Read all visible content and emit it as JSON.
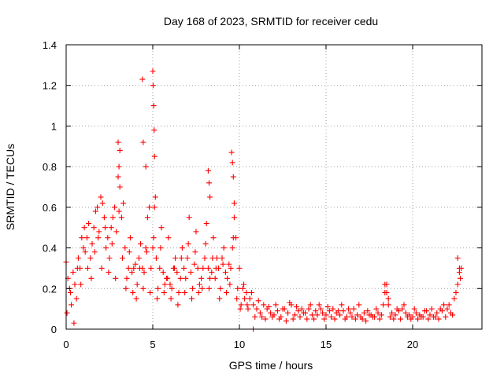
{
  "chart_data": {
    "type": "scatter",
    "title": "Day 168 of 2023, SRMTID for receiver cedu",
    "xlabel": "GPS time / hours",
    "ylabel": "SRMTID / TECUs",
    "xlim": [
      0,
      24
    ],
    "ylim": [
      0,
      1.4
    ],
    "xticks": [
      0,
      5,
      10,
      15,
      20
    ],
    "xtick_labels": [
      "0",
      "5",
      "10",
      "15",
      "20"
    ],
    "yticks": [
      0,
      0.2,
      0.4,
      0.6,
      0.8,
      1.0,
      1.2,
      1.4
    ],
    "ytick_labels": [
      "0",
      "0.2",
      "0.4",
      "0.6",
      "0.8",
      "1",
      "1.2",
      "1.4"
    ],
    "grid": true,
    "marker": "plus",
    "series": [
      {
        "name": "SRMTID",
        "color": "#ff0000",
        "x": [
          0.0,
          0.2,
          0.4,
          0.6,
          0.8,
          1.0,
          1.2,
          1.4,
          1.6,
          1.8,
          2.0,
          2.2,
          2.4,
          2.6,
          2.8,
          3.0,
          3.2,
          3.4,
          3.6,
          3.8,
          4.0,
          4.2,
          4.4,
          4.6,
          4.8,
          5.0,
          5.2,
          5.4,
          5.6,
          5.8,
          6.0,
          6.2,
          6.4,
          6.6,
          6.8,
          7.0,
          7.2,
          7.4,
          7.6,
          7.8,
          8.0,
          8.2,
          8.4,
          8.6,
          8.8,
          9.0,
          9.2,
          9.4,
          9.6,
          9.8,
          10.0,
          10.2,
          10.4,
          10.6,
          10.8,
          11.0,
          11.2,
          11.4,
          11.6,
          11.8,
          12.0,
          12.2,
          12.4,
          12.6,
          12.8,
          13.0,
          13.2,
          13.4,
          13.6,
          13.8,
          14.0,
          14.2,
          14.4,
          14.6,
          14.8,
          15.0,
          15.2,
          15.4,
          15.6,
          15.8,
          16.0,
          16.2,
          16.4,
          16.6,
          16.8,
          17.0,
          17.2,
          17.4,
          17.6,
          17.8,
          18.0,
          18.2,
          18.4,
          18.6,
          18.8,
          19.0,
          19.2,
          19.4,
          19.6,
          19.8,
          20.0,
          20.2,
          20.4,
          20.6,
          20.8,
          21.0,
          21.2,
          21.4,
          21.6,
          21.8,
          22.0,
          22.2,
          22.4,
          22.6,
          22.8,
          0.1,
          0.3,
          0.5,
          0.7,
          0.9,
          1.1,
          1.3,
          1.5,
          1.7,
          1.9,
          2.1,
          2.3,
          2.5,
          2.7,
          2.9,
          3.1,
          3.3,
          3.5,
          3.7,
          3.9,
          4.1,
          4.3,
          4.5,
          4.7,
          4.9,
          5.1,
          5.3,
          5.5,
          5.7,
          5.9,
          6.1,
          6.3,
          6.5,
          6.7,
          6.9,
          7.1,
          7.3,
          7.5,
          7.7,
          7.9,
          8.1,
          8.3,
          8.5,
          8.7,
          8.9,
          9.1,
          9.3,
          9.5,
          9.7,
          9.9,
          10.1,
          10.3,
          10.5,
          10.7,
          10.9,
          11.1,
          11.3,
          11.5,
          11.7,
          11.9,
          12.1,
          12.3,
          12.5,
          12.7,
          12.9,
          13.1,
          13.3,
          13.5,
          13.7,
          13.9,
          14.1,
          14.3,
          14.5,
          14.7,
          14.9,
          15.1,
          15.3,
          15.5,
          15.7,
          15.9,
          16.1,
          16.3,
          16.5,
          16.7,
          16.9,
          17.1,
          17.3,
          17.5,
          17.7,
          17.9,
          18.1,
          18.3,
          18.5,
          18.7,
          18.9,
          19.1,
          19.3,
          19.5,
          19.7,
          19.9,
          20.1,
          20.3,
          20.5,
          20.7,
          20.9,
          21.1,
          21.3,
          21.5,
          21.7,
          21.9,
          22.1,
          22.3,
          22.5,
          22.7,
          0.05,
          0.25,
          0.45,
          0.65,
          0.85,
          1.05,
          1.25,
          1.45,
          1.65,
          1.85,
          2.05,
          2.25,
          2.45,
          2.65,
          2.85,
          3.05,
          3.25,
          3.45,
          3.65,
          3.85,
          4.05,
          4.25,
          4.45,
          4.65,
          4.85,
          5.05,
          5.25,
          5.45,
          5.65,
          5.85,
          6.05,
          6.25,
          6.45,
          6.65,
          6.85,
          7.05,
          7.25,
          7.45,
          7.65,
          7.85,
          8.05,
          8.25,
          8.45,
          8.65,
          8.85,
          9.05,
          9.25,
          9.45,
          9.65,
          9.85,
          10.05,
          10.25,
          10.45,
          3.0,
          3.05,
          3.1,
          4.4,
          4.45,
          4.6,
          5.0,
          5.02,
          5.05,
          5.08,
          5.1,
          5.15,
          8.2,
          8.25,
          8.3,
          9.55,
          9.6,
          9.65,
          9.7,
          18.4,
          18.5,
          18.6,
          22.6,
          22.7,
          22.75,
          10.8
        ],
        "y": [
          0.33,
          0.2,
          0.28,
          0.15,
          0.3,
          0.4,
          0.45,
          0.35,
          0.5,
          0.6,
          0.65,
          0.55,
          0.45,
          0.5,
          0.6,
          0.75,
          0.55,
          0.4,
          0.3,
          0.28,
          0.32,
          0.35,
          0.3,
          0.4,
          0.6,
          0.4,
          0.35,
          0.3,
          0.28,
          0.25,
          0.22,
          0.3,
          0.28,
          0.25,
          0.3,
          0.35,
          0.28,
          0.32,
          0.3,
          0.25,
          0.35,
          0.3,
          0.28,
          0.25,
          0.3,
          0.35,
          0.28,
          0.32,
          0.4,
          0.45,
          0.3,
          0.2,
          0.18,
          0.15,
          0.12,
          0.1,
          0.08,
          0.12,
          0.1,
          0.08,
          0.07,
          0.09,
          0.06,
          0.1,
          0.08,
          0.12,
          0.07,
          0.09,
          0.1,
          0.08,
          0.1,
          0.07,
          0.09,
          0.12,
          0.08,
          0.07,
          0.09,
          0.1,
          0.08,
          0.07,
          0.09,
          0.06,
          0.08,
          0.1,
          0.07,
          0.06,
          0.08,
          0.09,
          0.07,
          0.06,
          0.08,
          0.07,
          0.18,
          0.12,
          0.08,
          0.07,
          0.09,
          0.1,
          0.08,
          0.07,
          0.06,
          0.08,
          0.07,
          0.06,
          0.09,
          0.07,
          0.06,
          0.08,
          0.1,
          0.12,
          0.1,
          0.08,
          0.15,
          0.22,
          0.3,
          0.25,
          0.12,
          0.22,
          0.35,
          0.45,
          0.38,
          0.52,
          0.42,
          0.58,
          0.48,
          0.62,
          0.4,
          0.35,
          0.55,
          0.48,
          0.7,
          0.62,
          0.25,
          0.45,
          0.3,
          0.22,
          0.42,
          0.28,
          0.55,
          0.3,
          0.6,
          0.2,
          0.5,
          0.22,
          0.45,
          0.2,
          0.35,
          0.18,
          0.4,
          0.25,
          0.55,
          0.2,
          0.48,
          0.22,
          0.3,
          0.52,
          0.25,
          0.45,
          0.35,
          0.2,
          0.4,
          0.25,
          0.3,
          0.55,
          0.2,
          0.12,
          0.15,
          0.1,
          0.18,
          0.06,
          0.14,
          0.06,
          0.05,
          0.11,
          0.06,
          0.12,
          0.05,
          0.1,
          0.04,
          0.13,
          0.05,
          0.11,
          0.06,
          0.08,
          0.05,
          0.12,
          0.05,
          0.07,
          0.1,
          0.05,
          0.11,
          0.06,
          0.05,
          0.09,
          0.12,
          0.05,
          0.1,
          0.06,
          0.05,
          0.12,
          0.05,
          0.04,
          0.07,
          0.06,
          0.1,
          0.05,
          0.12,
          0.22,
          0.06,
          0.05,
          0.1,
          0.05,
          0.12,
          0.06,
          0.05,
          0.1,
          0.05,
          0.06,
          0.09,
          0.05,
          0.1,
          0.06,
          0.05,
          0.09,
          0.06,
          0.12,
          0.07,
          0.18,
          0.28,
          0.08,
          0.18,
          0.03,
          0.3,
          0.22,
          0.5,
          0.3,
          0.25,
          0.38,
          0.45,
          0.3,
          0.5,
          0.28,
          0.42,
          0.25,
          0.58,
          0.35,
          0.2,
          0.38,
          0.18,
          0.15,
          0.3,
          0.2,
          0.38,
          0.18,
          0.45,
          0.15,
          0.4,
          0.18,
          0.25,
          0.15,
          0.3,
          0.12,
          0.35,
          0.18,
          0.42,
          0.15,
          0.38,
          0.18,
          0.2,
          0.42,
          0.2,
          0.35,
          0.3,
          0.15,
          0.32,
          0.18,
          0.22,
          0.45,
          0.15,
          0.1,
          0.22,
          0.12,
          0.92,
          0.8,
          0.88,
          1.23,
          0.92,
          0.8,
          1.27,
          1.2,
          1.1,
          0.98,
          0.85,
          0.65,
          0.78,
          0.72,
          0.65,
          0.87,
          0.82,
          0.75,
          0.62,
          0.22,
          0.18,
          0.15,
          0.35,
          0.3,
          0.25,
          0.0
        ]
      }
    ]
  }
}
